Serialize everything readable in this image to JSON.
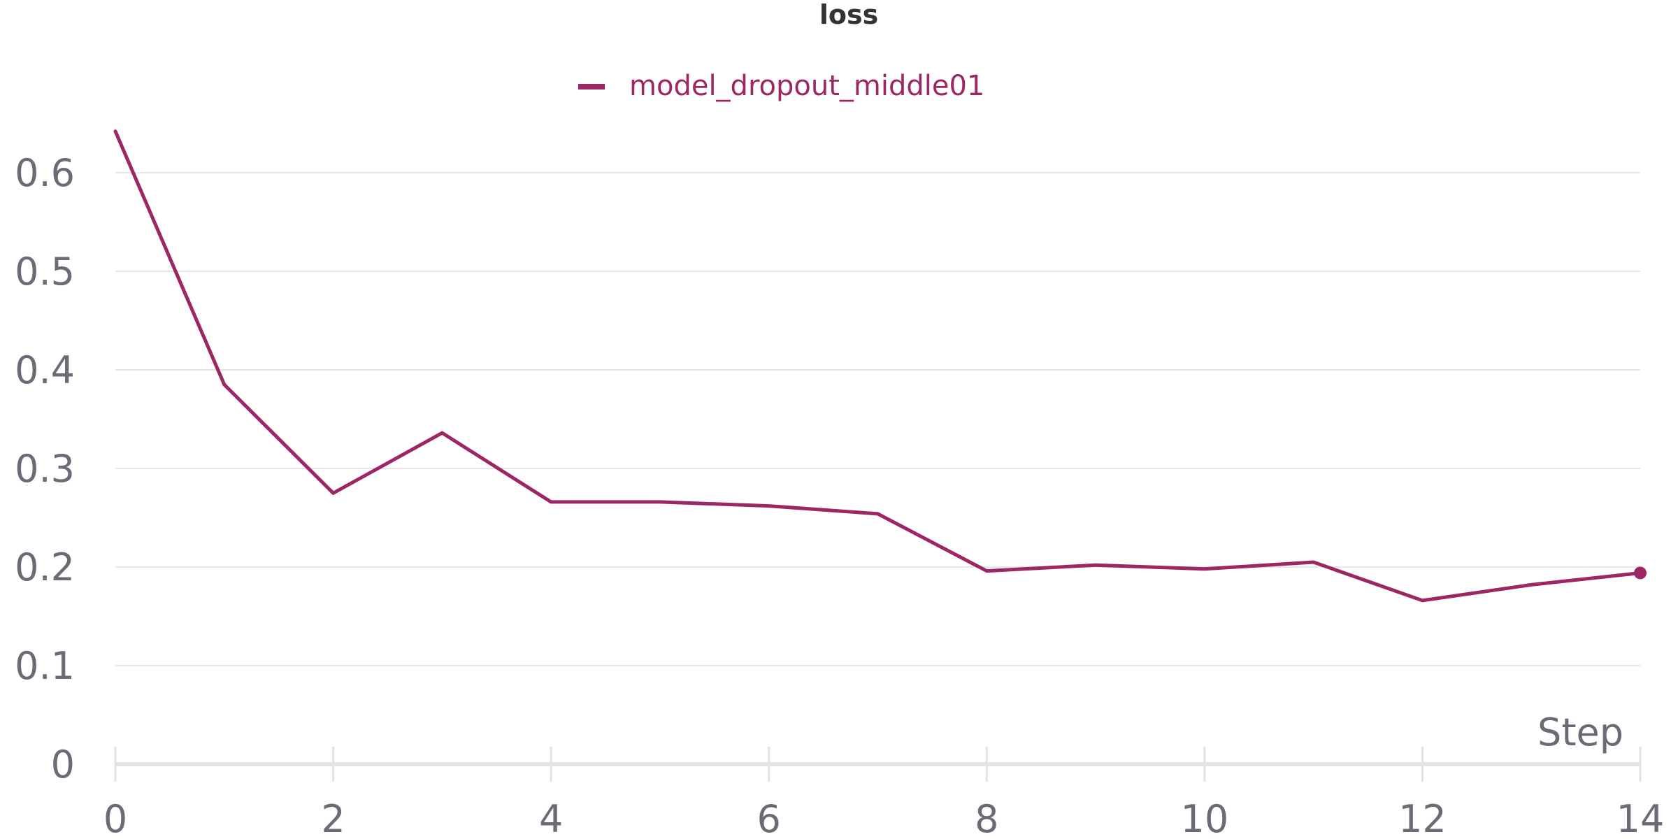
{
  "chart_data": {
    "type": "line",
    "title": "loss",
    "xlabel": "Step",
    "ylabel": "",
    "xlim": [
      0,
      14
    ],
    "ylim": [
      0,
      0.65
    ],
    "x_ticks": [
      "0",
      "2",
      "4",
      "6",
      "8",
      "10",
      "12",
      "14"
    ],
    "y_ticks": [
      "0",
      "0.1",
      "0.2",
      "0.3",
      "0.4",
      "0.5",
      "0.6"
    ],
    "grid": true,
    "legend_position": "top-center",
    "series": [
      {
        "name": "model_dropout_middle01",
        "color": "#9c2764",
        "x": [
          0,
          1,
          2,
          3,
          4,
          5,
          6,
          7,
          8,
          9,
          10,
          11,
          12,
          13,
          14
        ],
        "values": [
          0.642,
          0.385,
          0.275,
          0.336,
          0.266,
          0.266,
          0.262,
          0.254,
          0.196,
          0.202,
          0.198,
          0.205,
          0.166,
          0.182,
          0.194
        ]
      }
    ]
  }
}
